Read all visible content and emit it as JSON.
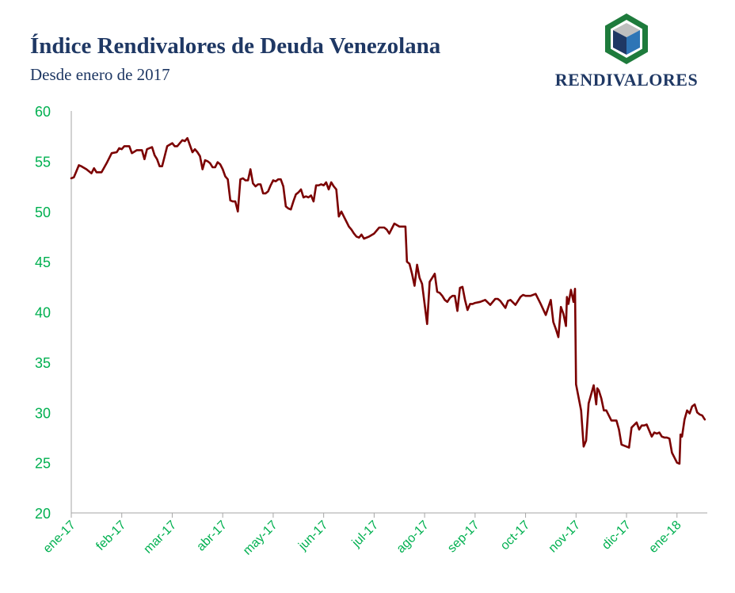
{
  "header": {
    "title": "Índice Rendivalores de Deuda Venezolana",
    "subtitle": "Desde enero de 2017"
  },
  "logo": {
    "text": "RENDIVALORES",
    "icon": "cube-hexagon-icon",
    "colors": {
      "outer": "#1e7b3c",
      "top": "#bfbfbf",
      "left": "#1f3864",
      "right": "#2e75b6"
    }
  },
  "colors": {
    "line": "#7b0000",
    "tick_text": "#00b050",
    "axis": "#a6a6a6"
  },
  "chart_data": {
    "type": "line",
    "ylim": [
      20,
      60
    ],
    "yticks": [
      20,
      25,
      30,
      35,
      40,
      45,
      50,
      55,
      60
    ],
    "xlim": [
      0,
      12.6
    ],
    "x_tick_labels": [
      "ene-17",
      "feb-17",
      "mar-17",
      "abr-17",
      "may-17",
      "jun-17",
      "jul-17",
      "ago-17",
      "sep-17",
      "oct-17",
      "nov-17",
      "dic-17",
      "ene-18"
    ],
    "x_tick_positions": [
      0,
      1,
      2,
      3,
      4,
      5,
      6,
      7,
      8,
      9,
      10,
      11,
      12
    ],
    "grid": false,
    "legend": "none",
    "series": [
      {
        "x_unit": "months since ene-17",
        "x": [
          0.0,
          0.05,
          0.1,
          0.15,
          0.2,
          0.3,
          0.4,
          0.45,
          0.5,
          0.55,
          0.6,
          0.7,
          0.8,
          0.9,
          0.95,
          1.0,
          1.05,
          1.15,
          1.2,
          1.3,
          1.4,
          1.45,
          1.5,
          1.6,
          1.65,
          1.7,
          1.75,
          1.8,
          1.9,
          2.0,
          2.05,
          2.1,
          2.2,
          2.25,
          2.3,
          2.4,
          2.45,
          2.5,
          2.55,
          2.6,
          2.65,
          2.7,
          2.75,
          2.8,
          2.85,
          2.9,
          2.95,
          3.0,
          3.05,
          3.1,
          3.15,
          3.2,
          3.25,
          3.3,
          3.35,
          3.4,
          3.45,
          3.5,
          3.55,
          3.6,
          3.65,
          3.7,
          3.75,
          3.8,
          3.85,
          3.9,
          3.95,
          4.0,
          4.05,
          4.1,
          4.15,
          4.2,
          4.25,
          4.3,
          4.35,
          4.4,
          4.45,
          4.5,
          4.55,
          4.6,
          4.65,
          4.7,
          4.75,
          4.8,
          4.85,
          4.9,
          4.95,
          5.0,
          5.05,
          5.1,
          5.15,
          5.2,
          5.25,
          5.3,
          5.35,
          5.4,
          5.45,
          5.5,
          5.55,
          5.6,
          5.65,
          5.7,
          5.75,
          5.8,
          5.9,
          6.0,
          6.1,
          6.2,
          6.25,
          6.3,
          6.4,
          6.5,
          6.55,
          6.6,
          6.62,
          6.65,
          6.7,
          6.75,
          6.8,
          6.85,
          6.9,
          6.95,
          7.0,
          7.05,
          7.1,
          7.15,
          7.2,
          7.25,
          7.3,
          7.35,
          7.4,
          7.45,
          7.5,
          7.55,
          7.6,
          7.65,
          7.7,
          7.75,
          7.8,
          7.85,
          7.9,
          7.95,
          8.0,
          8.1,
          8.2,
          8.3,
          8.4,
          8.45,
          8.5,
          8.6,
          8.65,
          8.7,
          8.8,
          8.9,
          8.95,
          9.0,
          9.1,
          9.2,
          9.3,
          9.4,
          9.5,
          9.55,
          9.6,
          9.65,
          9.7,
          9.75,
          9.8,
          9.82,
          9.85,
          9.9,
          9.95,
          9.98,
          10.0,
          10.05,
          10.1,
          10.15,
          10.2,
          10.25,
          10.3,
          10.35,
          10.4,
          10.42,
          10.45,
          10.5,
          10.55,
          10.6,
          10.7,
          10.8,
          10.85,
          10.9,
          11.0,
          11.05,
          11.1,
          11.2,
          11.25,
          11.3,
          11.35,
          11.4,
          11.45,
          11.5,
          11.55,
          11.6,
          11.65,
          11.7,
          11.75,
          11.8,
          11.85,
          11.9,
          11.95,
          12.0,
          12.05,
          12.07,
          12.1,
          12.15,
          12.2,
          12.25,
          12.3,
          12.35,
          12.4,
          12.45,
          12.5,
          12.55
        ],
        "y": [
          53.3,
          53.4,
          54.0,
          54.6,
          54.5,
          54.2,
          53.8,
          54.3,
          53.9,
          53.9,
          53.9,
          54.8,
          55.8,
          55.9,
          56.3,
          56.2,
          56.5,
          56.5,
          55.8,
          56.1,
          56.1,
          55.2,
          56.2,
          56.4,
          55.6,
          55.2,
          54.5,
          54.5,
          56.5,
          56.8,
          56.5,
          56.5,
          57.1,
          57.0,
          57.3,
          55.9,
          56.2,
          55.9,
          55.5,
          54.2,
          55.1,
          55.0,
          54.8,
          54.4,
          54.4,
          54.9,
          54.7,
          54.2,
          53.5,
          53.2,
          51.1,
          51.0,
          51.0,
          50.0,
          53.2,
          53.3,
          53.1,
          53.1,
          54.2,
          52.8,
          52.5,
          52.7,
          52.7,
          51.8,
          51.8,
          52.0,
          52.6,
          53.1,
          53.0,
          53.2,
          53.2,
          52.5,
          50.5,
          50.3,
          50.2,
          51.0,
          51.7,
          51.9,
          52.2,
          51.4,
          51.5,
          51.4,
          51.6,
          51.0,
          52.6,
          52.6,
          52.7,
          52.6,
          52.9,
          52.2,
          52.9,
          52.5,
          52.2,
          49.5,
          50.0,
          49.5,
          49.0,
          48.5,
          48.2,
          47.8,
          47.5,
          47.4,
          47.7,
          47.3,
          47.5,
          47.8,
          48.4,
          48.4,
          48.2,
          47.8,
          48.8,
          48.5,
          48.5,
          48.5,
          48.5,
          45.0,
          44.8,
          43.8,
          42.6,
          44.7,
          43.4,
          42.8,
          40.8,
          38.8,
          43.0,
          43.4,
          43.8,
          42.0,
          41.9,
          41.6,
          41.2,
          41.0,
          41.4,
          41.6,
          41.6,
          40.1,
          42.4,
          42.5,
          41.2,
          40.2,
          40.8,
          40.8,
          40.9,
          41.0,
          41.2,
          40.7,
          41.3,
          41.3,
          41.1,
          40.4,
          41.1,
          41.2,
          40.7,
          41.5,
          41.7,
          41.6,
          41.6,
          41.8,
          40.8,
          39.7,
          41.2,
          39.0,
          38.3,
          37.5,
          40.5,
          39.8,
          38.6,
          41.5,
          40.8,
          42.2,
          41.0,
          42.3,
          32.8,
          31.5,
          30.2,
          26.6,
          27.2,
          30.9,
          31.8,
          32.7,
          30.8,
          32.4,
          32.2,
          31.4,
          30.2,
          30.2,
          29.2,
          29.2,
          28.3,
          26.8,
          26.6,
          26.5,
          28.5,
          29.0,
          28.3,
          28.7,
          28.7,
          28.8,
          28.2,
          27.6,
          28.0,
          27.9,
          28.0,
          27.6,
          27.5,
          27.5,
          27.4,
          26.0,
          25.5,
          25.0,
          24.9,
          27.8,
          27.6,
          29.3,
          30.2,
          29.9,
          30.6,
          30.8,
          30.0,
          29.8,
          29.7,
          29.3
        ]
      }
    ]
  }
}
